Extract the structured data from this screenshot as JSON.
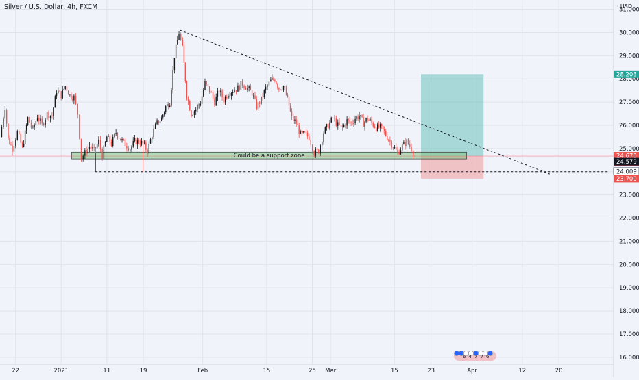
{
  "header": {
    "title": "Silver / U.S. Dollar, 4h, FXCM",
    "currency": "USD"
  },
  "chart_data": {
    "type": "candlestick",
    "title": "Silver / U.S. Dollar, 4h, FXCM",
    "symbol": "Silver / U.S. Dollar",
    "interval": "4h",
    "exchange": "FXCM",
    "currency": "USD",
    "ylim": [
      15.7,
      31.4
    ],
    "y_ticks": [
      "31.000",
      "30.000",
      "29.000",
      "28.000",
      "27.000",
      "26.000",
      "25.000",
      "24.000",
      "23.000",
      "22.000",
      "21.000",
      "20.000",
      "19.000",
      "18.000",
      "17.000",
      "16.000"
    ],
    "x_ticks": [
      "22",
      "2021",
      "11",
      "19",
      "Feb",
      "15",
      "25",
      "Mar",
      "15",
      "23",
      "Apr",
      "12",
      "20"
    ],
    "x_tick_days": [
      -10,
      0,
      10,
      18,
      31,
      45,
      55,
      59,
      73,
      81,
      90,
      101,
      109
    ],
    "xlim_days": [
      -13.4,
      121
    ],
    "grid": true,
    "colors": {
      "up": "#26a69a",
      "down": "#ef5350",
      "candle_up": "#1a1a1a",
      "candle_down": "#ef5350",
      "text": "#131722"
    },
    "price_path": [
      [
        -13.4,
        25.5
      ],
      [
        -12.3,
        26.8
      ],
      [
        -11.6,
        25.4
      ],
      [
        -10.7,
        25.0
      ],
      [
        -9.6,
        25.7
      ],
      [
        -8.5,
        25.0
      ],
      [
        -7.3,
        26.3
      ],
      [
        -6.2,
        25.8
      ],
      [
        -5.2,
        26.4
      ],
      [
        -4.2,
        26.0
      ],
      [
        -3.1,
        26.5
      ],
      [
        -2.0,
        26.4
      ],
      [
        -1.0,
        27.5
      ],
      [
        0.0,
        27.3
      ],
      [
        0.9,
        27.7
      ],
      [
        1.9,
        27.3
      ],
      [
        2.8,
        27.2
      ],
      [
        3.6,
        26.5
      ],
      [
        4.4,
        24.6
      ],
      [
        5.2,
        24.8
      ],
      [
        6.2,
        25.1
      ],
      [
        7.2,
        24.9
      ],
      [
        8.2,
        25.3
      ],
      [
        9.0,
        24.7
      ],
      [
        10.0,
        25.5
      ],
      [
        11.0,
        25.2
      ],
      [
        12.0,
        25.7
      ],
      [
        13.0,
        25.4
      ],
      [
        14.0,
        25.2
      ],
      [
        15.1,
        25.0
      ],
      [
        16.1,
        25.3
      ],
      [
        17.0,
        25.3
      ],
      [
        17.9,
        25.2
      ],
      [
        18.9,
        24.9
      ],
      [
        19.9,
        25.6
      ],
      [
        21.0,
        26.1
      ],
      [
        22.0,
        26.3
      ],
      [
        22.9,
        26.8
      ],
      [
        23.8,
        27.0
      ],
      [
        24.8,
        29.0
      ],
      [
        25.8,
        30.0
      ],
      [
        26.6,
        29.3
      ],
      [
        27.5,
        27.3
      ],
      [
        28.5,
        26.5
      ],
      [
        29.5,
        26.7
      ],
      [
        30.5,
        27.0
      ],
      [
        31.5,
        27.8
      ],
      [
        32.5,
        27.5
      ],
      [
        33.6,
        27.0
      ],
      [
        34.6,
        27.5
      ],
      [
        35.6,
        27.1
      ],
      [
        36.6,
        27.4
      ],
      [
        37.6,
        27.5
      ],
      [
        38.7,
        27.6
      ],
      [
        39.7,
        27.8
      ],
      [
        40.8,
        27.6
      ],
      [
        41.8,
        27.4
      ],
      [
        42.8,
        26.8
      ],
      [
        43.8,
        27.1
      ],
      [
        44.8,
        27.6
      ],
      [
        45.9,
        27.9
      ],
      [
        46.8,
        28.0
      ],
      [
        47.7,
        27.6
      ],
      [
        48.7,
        27.7
      ],
      [
        49.6,
        27.1
      ],
      [
        50.5,
        26.3
      ],
      [
        51.5,
        26.1
      ],
      [
        52.4,
        25.6
      ],
      [
        53.3,
        25.6
      ],
      [
        54.3,
        25.5
      ],
      [
        55.4,
        24.8
      ],
      [
        56.4,
        24.9
      ],
      [
        57.5,
        25.7
      ],
      [
        58.5,
        26.0
      ],
      [
        59.5,
        26.3
      ],
      [
        60.6,
        26.0
      ],
      [
        61.6,
        25.9
      ],
      [
        62.6,
        26.2
      ],
      [
        63.5,
        26.1
      ],
      [
        64.4,
        26.3
      ],
      [
        65.3,
        26.4
      ],
      [
        66.2,
        26.1
      ],
      [
        67.1,
        26.3
      ],
      [
        68.0,
        26.1
      ],
      [
        69.0,
        25.9
      ],
      [
        69.9,
        25.9
      ],
      [
        70.8,
        25.7
      ],
      [
        71.7,
        25.4
      ],
      [
        72.7,
        25.1
      ],
      [
        73.7,
        24.8
      ],
      [
        74.7,
        25.1
      ],
      [
        75.7,
        25.3
      ],
      [
        76.7,
        25.0
      ],
      [
        77.5,
        24.7
      ]
    ],
    "annotations": {
      "support_zone_label": "Could be a support zone",
      "support_zone": {
        "from_day": 2.3,
        "to_day": 88.8,
        "price_low": 24.55,
        "price_high": 24.84
      },
      "trendline": {
        "from": [
          26.0,
          30.1
        ],
        "to": [
          107.0,
          23.9
        ]
      },
      "horizontal_line": {
        "from_day": 7.5,
        "to_day": 120.0,
        "price": 24.0
      },
      "long_position": {
        "from_day": 78.8,
        "to_day": 92.5,
        "entry": 24.67,
        "target": 28.203,
        "stop": 23.7
      }
    },
    "price_labels": [
      {
        "label": "28.203",
        "price": 28.203,
        "bg": "#26a69a",
        "fg": "#ffffff"
      },
      {
        "label": "24.670",
        "sub": "32:24",
        "price": 24.67,
        "bg": "#ef5350",
        "fg": "#ffffff"
      },
      {
        "label": "24.579",
        "price": 24.579,
        "bg": "#131722",
        "fg": "#ffffff"
      },
      {
        "label": "24.009",
        "price": 24.009,
        "bg": "#ffffff",
        "fg": "#131722"
      },
      {
        "label": "23.700",
        "price": 23.7,
        "bg": "#ef5350",
        "fg": "#ffffff"
      }
    ],
    "event_markers": [
      "E",
      "E",
      "D",
      "D",
      "E",
      "D",
      "D",
      "E"
    ],
    "event_counts": [
      "6",
      "4",
      "7",
      "7",
      "6"
    ]
  }
}
